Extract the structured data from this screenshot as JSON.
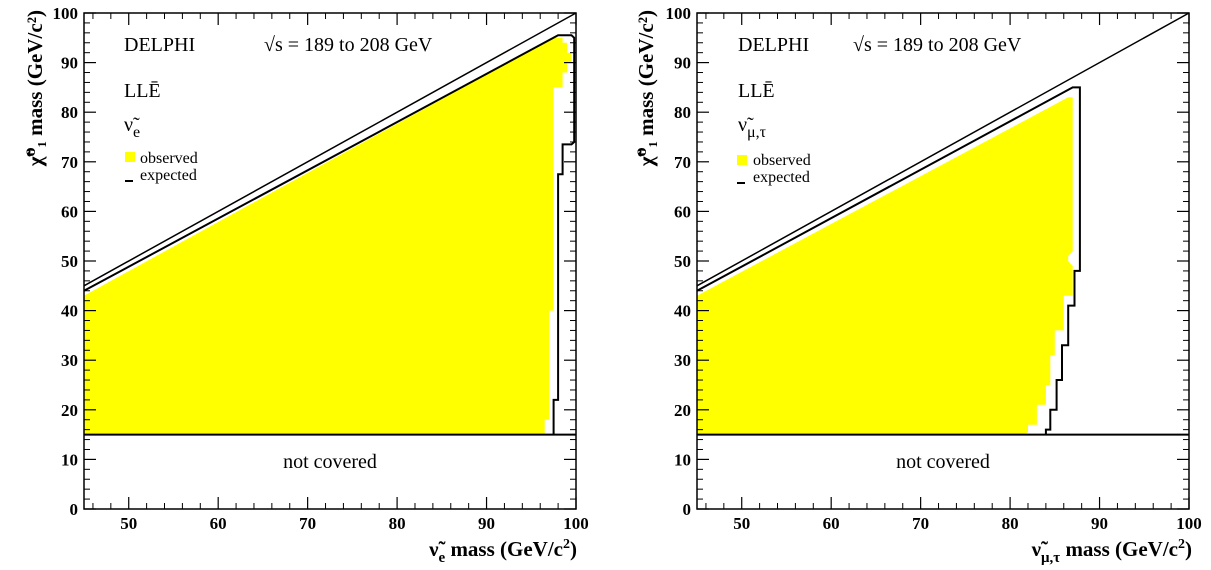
{
  "chart_data": [
    {
      "type": "area",
      "experiment": "DELPHI",
      "energy_label": "√s = 189 to 208 GeV",
      "coupling": "LLĒ",
      "sneutrino_label": "ν̃",
      "sneutrino_sub": "e",
      "xlabel_main": "ν̃",
      "xlabel_sub": "e",
      "xlabel_rest": " mass (GeV/c",
      "xlabel_exp": "2",
      "xlabel_close": ")",
      "ylabel": "χ̃⁰₁ mass (GeV/c²)",
      "xlim": [
        45,
        100
      ],
      "ylim": [
        0,
        100
      ],
      "xticks": [
        50,
        60,
        70,
        80,
        90,
        100
      ],
      "yticks": [
        0,
        10,
        20,
        30,
        40,
        50,
        60,
        70,
        80,
        90,
        100
      ],
      "legend": [
        {
          "label": "observed",
          "kind": "fill"
        },
        {
          "label": "expected",
          "kind": "line"
        }
      ],
      "not_covered_label": "not covered",
      "not_covered_below": 15,
      "kinematic_limit": [
        [
          45,
          45
        ],
        [
          100,
          100
        ]
      ],
      "observed_region": [
        [
          45,
          15
        ],
        [
          45,
          43
        ],
        [
          97.5,
          95
        ],
        [
          98.5,
          95
        ],
        [
          98.5,
          94
        ],
        [
          99,
          94
        ],
        [
          99,
          92
        ],
        [
          99.5,
          92
        ],
        [
          99.5,
          90
        ],
        [
          99,
          90
        ],
        [
          99,
          88
        ],
        [
          98.5,
          88
        ],
        [
          98.5,
          85
        ],
        [
          97.5,
          85
        ],
        [
          97.5,
          40
        ],
        [
          97,
          40
        ],
        [
          97,
          18
        ],
        [
          96.5,
          18
        ],
        [
          96.5,
          15
        ]
      ],
      "expected_contour": [
        [
          45,
          44
        ],
        [
          98,
          95.5
        ],
        [
          99.5,
          95.5
        ],
        [
          99.8,
          95
        ],
        [
          99.8,
          74
        ],
        [
          99.5,
          73.5
        ],
        [
          98.5,
          73.5
        ],
        [
          98.5,
          67.5
        ],
        [
          98,
          67.5
        ],
        [
          98,
          22
        ],
        [
          97.5,
          22
        ],
        [
          97.5,
          15
        ]
      ]
    },
    {
      "type": "area",
      "experiment": "DELPHI",
      "energy_label": "√s = 189 to 208 GeV",
      "coupling": "LLĒ",
      "sneutrino_label": "ν̃",
      "sneutrino_sub": "μ,τ",
      "xlabel_main": "ν̃",
      "xlabel_sub": "μ,τ",
      "xlabel_rest": " mass (GeV/c",
      "xlabel_exp": "2",
      "xlabel_close": ")",
      "ylabel": "χ̃⁰₁ mass (GeV/c²)",
      "xlim": [
        45,
        100
      ],
      "ylim": [
        0,
        100
      ],
      "xticks": [
        50,
        60,
        70,
        80,
        90,
        100
      ],
      "yticks": [
        0,
        10,
        20,
        30,
        40,
        50,
        60,
        70,
        80,
        90,
        100
      ],
      "legend": [
        {
          "label": "observed",
          "kind": "fill"
        },
        {
          "label": "expected",
          "kind": "line"
        }
      ],
      "not_covered_label": "not covered",
      "not_covered_below": 15,
      "kinematic_limit": [
        [
          45,
          45
        ],
        [
          100,
          100
        ]
      ],
      "observed_region": [
        [
          45,
          15
        ],
        [
          45,
          43
        ],
        [
          86.5,
          83
        ],
        [
          87,
          83
        ],
        [
          87,
          52
        ],
        [
          86.5,
          51
        ],
        [
          86.5,
          50
        ],
        [
          87,
          49
        ],
        [
          87,
          43
        ],
        [
          86,
          43
        ],
        [
          86,
          36
        ],
        [
          85,
          36
        ],
        [
          85,
          31
        ],
        [
          84.5,
          31
        ],
        [
          84.5,
          25
        ],
        [
          84,
          25
        ],
        [
          84,
          21
        ],
        [
          83,
          21
        ],
        [
          83,
          17
        ],
        [
          82,
          17
        ],
        [
          82,
          15.5
        ],
        [
          81.5,
          15
        ]
      ],
      "expected_contour": [
        [
          45,
          44
        ],
        [
          87,
          85
        ],
        [
          87.8,
          85
        ],
        [
          87.8,
          48
        ],
        [
          87.2,
          48
        ],
        [
          87.2,
          41
        ],
        [
          86.5,
          41
        ],
        [
          86.5,
          33
        ],
        [
          85.8,
          33
        ],
        [
          85.8,
          26
        ],
        [
          85.2,
          26
        ],
        [
          85.2,
          20
        ],
        [
          84.5,
          20
        ],
        [
          84.5,
          16
        ],
        [
          84,
          16
        ],
        [
          84,
          15
        ]
      ]
    }
  ]
}
